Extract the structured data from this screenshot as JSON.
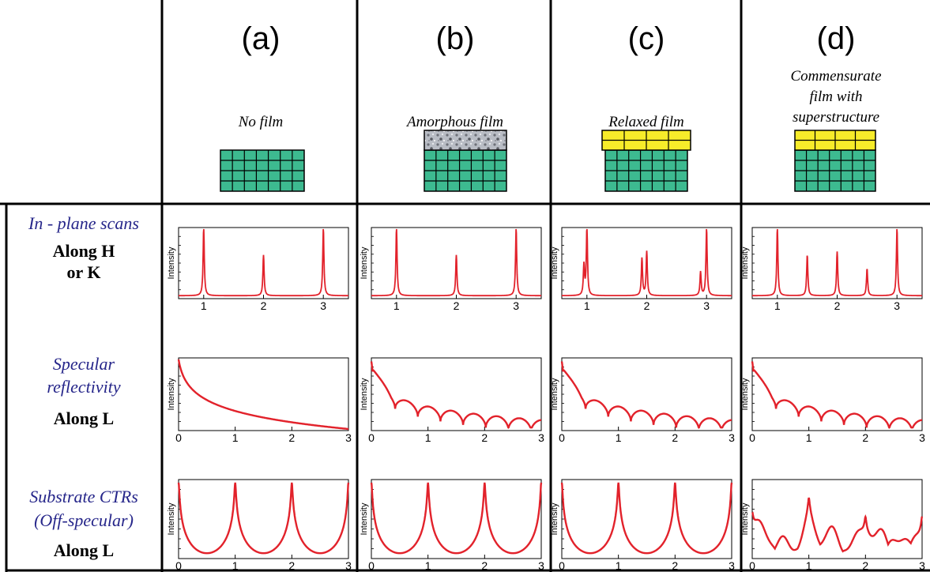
{
  "headers": [
    {
      "label": "(a)",
      "caption": [
        "No film"
      ]
    },
    {
      "label": "(b)",
      "caption": [
        "Amorphous film"
      ]
    },
    {
      "label": "(c)",
      "caption": [
        "Relaxed film"
      ]
    },
    {
      "label": "(d)",
      "caption": [
        "Commensurate",
        "film with",
        "superstructure"
      ]
    }
  ],
  "rows": [
    {
      "title": [
        "In - plane scans"
      ],
      "direction": [
        "Along H",
        "or K"
      ],
      "panels": [
        {
          "y_label": "Intensity",
          "xlim": [
            0.58,
            3.42
          ],
          "xticks": [
            1,
            2,
            3
          ],
          "peaks": [
            [
              1,
              1
            ],
            [
              2,
              0.6
            ],
            [
              3,
              1
            ]
          ]
        },
        {
          "y_label": "Intensity",
          "xlim": [
            0.58,
            3.42
          ],
          "xticks": [
            1,
            2,
            3
          ],
          "peaks": [
            [
              1,
              1
            ],
            [
              2,
              0.6
            ],
            [
              3,
              1
            ]
          ]
        },
        {
          "y_label": "Intensity",
          "xlim": [
            0.58,
            3.42
          ],
          "xticks": [
            1,
            2,
            3
          ],
          "peaks": [
            [
              0.95,
              0.45
            ],
            [
              1,
              1
            ],
            [
              1.92,
              0.55
            ],
            [
              2,
              0.65
            ],
            [
              2.9,
              0.35
            ],
            [
              3,
              1
            ]
          ]
        },
        {
          "y_label": "Intensity",
          "xlim": [
            0.58,
            3.42
          ],
          "xticks": [
            1,
            2,
            3
          ],
          "peaks": [
            [
              1,
              1
            ],
            [
              1.5,
              0.6
            ],
            [
              2,
              0.65
            ],
            [
              2.5,
              0.4
            ],
            [
              3,
              1
            ]
          ]
        }
      ]
    },
    {
      "title": [
        "Specular",
        "reflectivity"
      ],
      "direction": [
        "Along L"
      ],
      "panels": [
        {
          "y_label": "Intensity",
          "xlim": [
            0,
            3
          ],
          "xticks": [
            0,
            1,
            2,
            3
          ]
        },
        {
          "y_label": "Intensity",
          "xlim": [
            0,
            3
          ],
          "xticks": [
            0,
            1,
            2,
            3
          ]
        },
        {
          "y_label": "Intensity",
          "xlim": [
            0,
            3
          ],
          "xticks": [
            0,
            1,
            2,
            3
          ]
        },
        {
          "y_label": "Intensity",
          "xlim": [
            0,
            3
          ],
          "xticks": [
            0,
            1,
            2,
            3
          ]
        }
      ]
    },
    {
      "title": [
        "Substrate CTRs",
        "(Off-specular)"
      ],
      "direction": [
        "Along L"
      ],
      "panels": [
        {
          "y_label": "Intensity",
          "xlim": [
            0,
            3
          ],
          "xticks": [
            0,
            1,
            2,
            3
          ]
        },
        {
          "y_label": "Intensity",
          "xlim": [
            0,
            3
          ],
          "xticks": [
            0,
            1,
            2,
            3
          ]
        },
        {
          "y_label": "Intensity",
          "xlim": [
            0,
            3
          ],
          "xticks": [
            0,
            1,
            2,
            3
          ]
        },
        {
          "y_label": "Intensity",
          "xlim": [
            0,
            3
          ],
          "xticks": [
            0,
            1,
            2,
            3
          ]
        }
      ]
    }
  ]
}
